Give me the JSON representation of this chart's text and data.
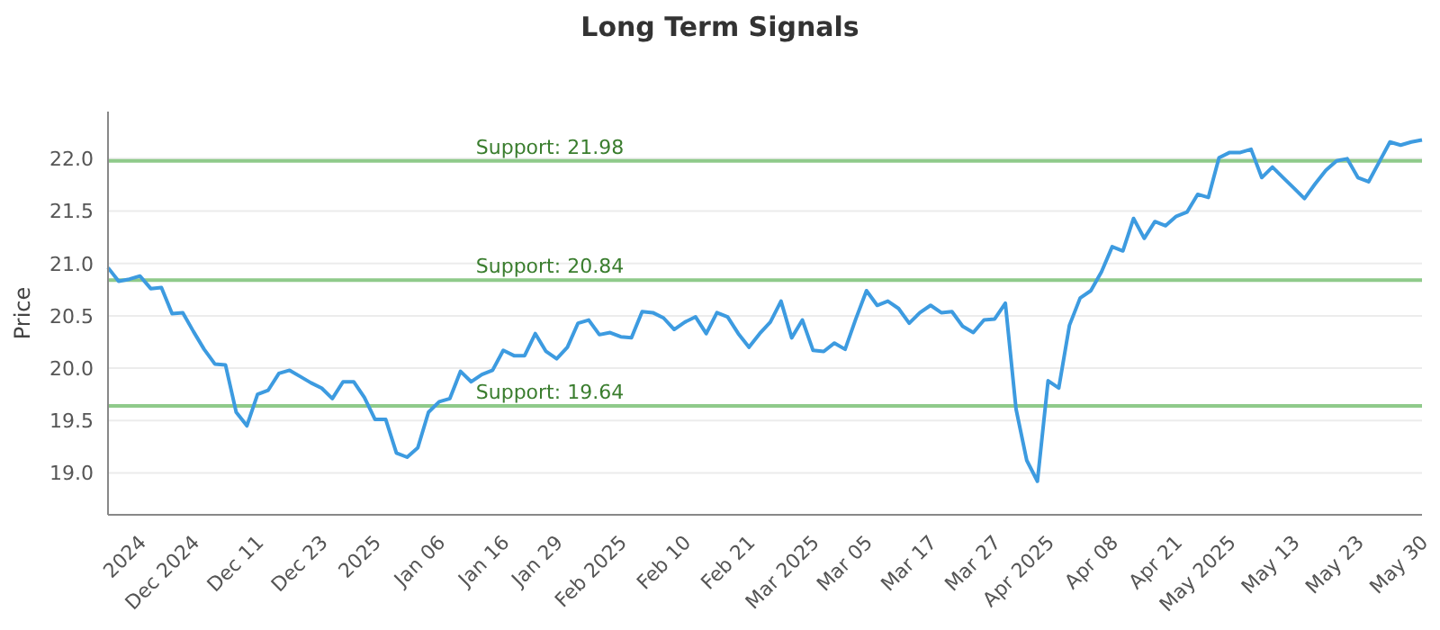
{
  "chart_data": {
    "type": "line",
    "title": "Long Term Signals",
    "ylabel": "Price",
    "categories": [
      null,
      null,
      null,
      "2024",
      null,
      null,
      null,
      null,
      "Dec 2024",
      null,
      null,
      null,
      null,
      null,
      "Dec 11",
      null,
      null,
      null,
      null,
      null,
      "Dec 23",
      null,
      null,
      null,
      null,
      "2025",
      null,
      null,
      null,
      null,
      null,
      "Jan 06",
      null,
      null,
      null,
      null,
      null,
      "Jan 16",
      null,
      null,
      null,
      null,
      "Jan 29",
      null,
      null,
      null,
      null,
      null,
      "Feb 2025",
      null,
      null,
      null,
      null,
      null,
      "Feb 10",
      null,
      null,
      null,
      null,
      null,
      "Feb 21",
      null,
      null,
      null,
      null,
      null,
      "Mar 2025",
      null,
      null,
      null,
      null,
      "Mar 05",
      null,
      null,
      null,
      null,
      null,
      "Mar 17",
      null,
      null,
      null,
      null,
      null,
      "Mar 27",
      null,
      null,
      null,
      null,
      "Apr 2025",
      null,
      null,
      null,
      null,
      null,
      "Apr 08",
      null,
      null,
      null,
      null,
      null,
      "Apr 21",
      null,
      null,
      null,
      null,
      "May 2025",
      null,
      null,
      null,
      null,
      null,
      "May 13",
      null,
      null,
      null,
      null,
      null,
      "May 23",
      null,
      null,
      null,
      null,
      null,
      "May 30"
    ],
    "values": [
      20.96,
      20.83,
      20.85,
      20.88,
      20.76,
      20.77,
      20.52,
      20.53,
      20.35,
      20.18,
      20.04,
      20.03,
      19.58,
      19.45,
      19.75,
      19.79,
      19.95,
      19.98,
      19.92,
      19.86,
      19.81,
      19.71,
      19.87,
      19.87,
      19.72,
      19.51,
      19.51,
      19.19,
      19.15,
      19.24,
      19.58,
      19.68,
      19.71,
      19.97,
      19.87,
      19.94,
      19.98,
      20.17,
      20.12,
      20.12,
      20.33,
      20.16,
      20.09,
      20.2,
      20.43,
      20.46,
      20.32,
      20.34,
      20.3,
      20.29,
      20.54,
      20.53,
      20.48,
      20.37,
      20.44,
      20.49,
      20.33,
      20.53,
      20.49,
      20.33,
      20.2,
      20.33,
      20.44,
      20.64,
      20.29,
      20.46,
      20.17,
      20.16,
      20.24,
      20.18,
      20.47,
      20.74,
      20.6,
      20.64,
      20.57,
      20.43,
      20.53,
      20.6,
      20.53,
      20.54,
      20.4,
      20.34,
      20.46,
      20.47,
      20.62,
      19.61,
      19.12,
      18.92,
      19.88,
      19.81,
      20.41,
      20.67,
      20.74,
      20.92,
      21.16,
      21.12,
      21.43,
      21.24,
      21.4,
      21.36,
      21.45,
      21.49,
      21.66,
      21.63,
      22.01,
      22.06,
      22.06,
      22.09,
      21.82,
      21.92,
      21.82,
      21.72,
      21.62,
      21.76,
      21.89,
      21.98,
      22.0,
      21.82,
      21.78,
      21.97,
      22.16,
      22.13,
      22.16,
      22.18
    ],
    "color": "#3d9be0",
    "ylim": [
      18.6,
      22.45
    ],
    "yticks": [
      {
        "value": 19,
        "label": "19.0"
      },
      19.5,
      {
        "value": 20,
        "label": "20.0"
      },
      20.5,
      {
        "value": 21,
        "label": "21.0"
      },
      21.5,
      {
        "value": 22,
        "label": "22.0"
      }
    ],
    "grid": "y",
    "ref_lines": [
      {
        "axis": "y",
        "value": 21.98,
        "label": "Support: 21.98",
        "color": "#8fca8a"
      },
      {
        "axis": "y",
        "value": 20.84,
        "label": "Support: 20.84",
        "color": "#8fca8a"
      },
      {
        "axis": "y",
        "value": 19.64,
        "label": "Support: 19.64",
        "color": "#8fca8a"
      }
    ]
  }
}
